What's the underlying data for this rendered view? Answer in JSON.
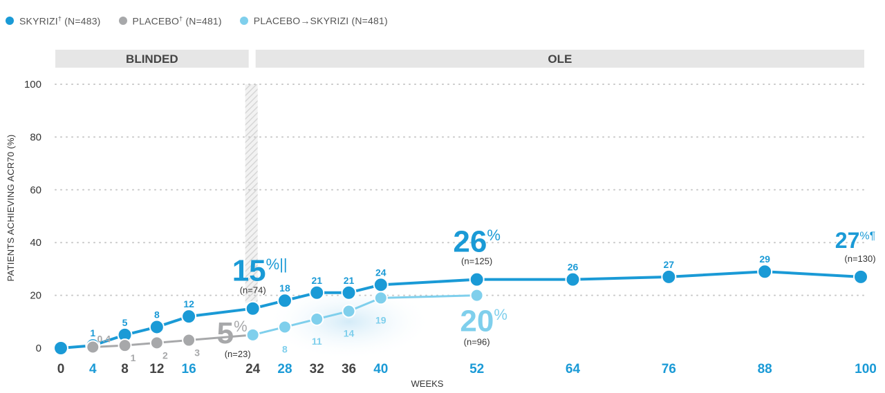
{
  "legend": [
    {
      "label": "SKYRIZI",
      "sup": "†",
      "n": "(N=483)",
      "color": "#1A9AD6"
    },
    {
      "label": "PLACEBO",
      "sup": "†",
      "n": "(N=481)",
      "color": "#A7A8AA"
    },
    {
      "label": "PLACEBO→SKYRIZI",
      "sup": "",
      "n": "(N=481)",
      "color": "#7FCFEC"
    }
  ],
  "chart_data": {
    "type": "line",
    "title": "",
    "xlabel": "WEEKS",
    "ylabel": "PATIENTS ACHIEVING ACR70 (%)",
    "ylim": [
      0,
      100
    ],
    "yticks": [
      0,
      20,
      40,
      60,
      80,
      100
    ],
    "xticks": [
      0,
      4,
      8,
      12,
      16,
      24,
      28,
      32,
      36,
      40,
      52,
      64,
      76,
      88,
      100
    ],
    "bands": [
      {
        "label": "BLINDED",
        "from": 0,
        "to": 24
      },
      {
        "label": "OLE",
        "from": 24,
        "to": 100
      }
    ],
    "series": [
      {
        "name": "SKYRIZI",
        "color": "#1A9AD6",
        "points": [
          {
            "x": 0,
            "y": 0,
            "label": ""
          },
          {
            "x": 4,
            "y": 1,
            "label": "1"
          },
          {
            "x": 8,
            "y": 5,
            "label": "5"
          },
          {
            "x": 12,
            "y": 8,
            "label": "8"
          },
          {
            "x": 16,
            "y": 12,
            "label": "12"
          },
          {
            "x": 24,
            "y": 15,
            "label": ""
          },
          {
            "x": 28,
            "y": 18,
            "label": "18"
          },
          {
            "x": 32,
            "y": 21,
            "label": "21"
          },
          {
            "x": 36,
            "y": 21,
            "label": "21"
          },
          {
            "x": 40,
            "y": 24,
            "label": "24"
          },
          {
            "x": 52,
            "y": 26,
            "label": ""
          },
          {
            "x": 64,
            "y": 26,
            "label": "26"
          },
          {
            "x": 76,
            "y": 27,
            "label": "27"
          },
          {
            "x": 88,
            "y": 29,
            "label": "29"
          },
          {
            "x": 100,
            "y": 27,
            "label": ""
          }
        ]
      },
      {
        "name": "PLACEBO",
        "color": "#A7A8AA",
        "points": [
          {
            "x": 4,
            "y": 0.4,
            "label": "0.4"
          },
          {
            "x": 8,
            "y": 1,
            "label": "1"
          },
          {
            "x": 12,
            "y": 2,
            "label": "2"
          },
          {
            "x": 16,
            "y": 3,
            "label": "3"
          },
          {
            "x": 24,
            "y": 5,
            "label": ""
          }
        ]
      },
      {
        "name": "PLACEBO→SKYRIZI",
        "color": "#7FCFEC",
        "points": [
          {
            "x": 24,
            "y": 5,
            "label": ""
          },
          {
            "x": 28,
            "y": 8,
            "label": "8"
          },
          {
            "x": 32,
            "y": 11,
            "label": "11"
          },
          {
            "x": 36,
            "y": 14,
            "label": "14"
          },
          {
            "x": 40,
            "y": 19,
            "label": "19"
          },
          {
            "x": 52,
            "y": 20,
            "label": ""
          }
        ]
      }
    ],
    "annotations": [
      {
        "x": 24,
        "y": 15,
        "value": "15",
        "suffix": "%||",
        "n": "(n=74)",
        "color": "#1A9AD6",
        "anchor": "above"
      },
      {
        "x": 24,
        "y": 5,
        "value": "5",
        "suffix": "%",
        "n": "(n=23)",
        "color": "#A7A8AA",
        "anchor": "left"
      },
      {
        "x": 52,
        "y": 26,
        "value": "26",
        "suffix": "%",
        "n": "(n=125)",
        "color": "#1A9AD6",
        "anchor": "above"
      },
      {
        "x": 52,
        "y": 20,
        "value": "20",
        "suffix": "%",
        "n": "(n=96)",
        "color": "#7FCFEC",
        "anchor": "below"
      },
      {
        "x": 100,
        "y": 27,
        "value": "27",
        "suffix": "%¶",
        "n": "(n=130)",
        "color": "#1A9AD6",
        "anchor": "above"
      }
    ]
  }
}
